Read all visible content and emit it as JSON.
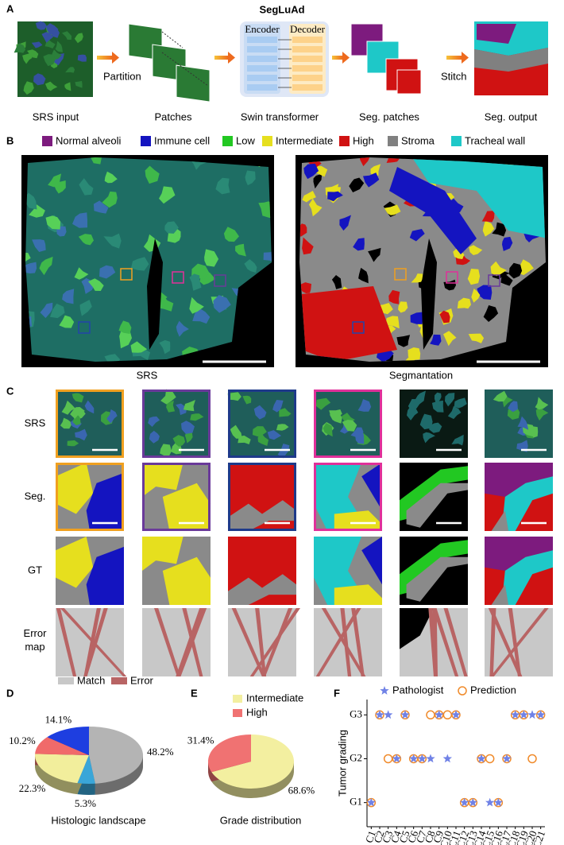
{
  "panels": [
    "A",
    "B",
    "C",
    "D",
    "E",
    "F"
  ],
  "pipeline": {
    "title": "SegLuAd",
    "steps": [
      "SRS input",
      "Patches",
      "Swin transformer",
      "Seg. patches",
      "Seg. output"
    ],
    "arrows": [
      "Partition",
      "Stitch"
    ],
    "encoder": "Encoder",
    "decoder": "Decoder"
  },
  "legend_b": [
    {
      "label": "Normal alveoli",
      "color": "#7d1b7e"
    },
    {
      "label": "Immune cell",
      "color": "#1414c0"
    },
    {
      "label": "Low",
      "color": "#22c822"
    },
    {
      "label": "Intermediate",
      "color": "#e6df1e"
    },
    {
      "label": "High",
      "color": "#d01212"
    },
    {
      "label": "Stroma",
      "color": "#808080"
    },
    {
      "label": "Tracheal wall",
      "color": "#1ec8c8"
    }
  ],
  "captions_b": [
    "SRS",
    "Segmantation"
  ],
  "panel_c": {
    "row_labels": [
      "SRS",
      "Seg.",
      "GT",
      "Error map"
    ],
    "legend": [
      {
        "label": "Match",
        "color": "#c8c8c8"
      },
      {
        "label": "Error",
        "color": "#b86464"
      }
    ]
  },
  "chart_data": [
    {
      "type": "pie",
      "title": "Histologic landscape",
      "values": [
        48.2,
        5.3,
        22.3,
        10.2,
        14.1
      ],
      "value_labels": [
        "48.2%",
        "5.3%",
        "22.3%",
        "10.2%",
        "14.1%"
      ],
      "colors": [
        "#b4b4b4",
        "#3aa6d8",
        "#f2ee9c",
        "#f06a6a",
        "#1e3ee0"
      ]
    },
    {
      "type": "pie",
      "title": "Grade distribution",
      "categories": [
        "Intermediate",
        "High"
      ],
      "values": [
        68.6,
        31.4
      ],
      "value_labels": [
        "68.6%",
        "31.4%"
      ],
      "colors": [
        "#f3efa0",
        "#f07272"
      ]
    },
    {
      "type": "scatter",
      "ylabel": "Tumor grading",
      "categories": [
        "C1",
        "C2",
        "C3",
        "C4",
        "C5",
        "C6",
        "C7",
        "C8",
        "C9",
        "C10",
        "C11",
        "C12",
        "C13",
        "C14",
        "C15",
        "C16",
        "C17",
        "C18",
        "C19",
        "C20",
        "C21"
      ],
      "series": [
        {
          "name": "Pathologist",
          "color": "#7082e6",
          "marker": "star",
          "values": [
            1,
            3,
            3,
            2,
            3,
            2,
            2,
            2,
            3,
            2,
            3,
            1,
            1,
            2,
            1,
            1,
            2,
            3,
            3,
            3,
            3
          ]
        },
        {
          "name": "Prediction",
          "color": "#f08a2a",
          "marker": "circle",
          "values": [
            1,
            3,
            2,
            2,
            3,
            2,
            2,
            3,
            3,
            3,
            3,
            1,
            1,
            2,
            2,
            1,
            2,
            3,
            3,
            2,
            3
          ]
        }
      ],
      "ylim": [
        0.45,
        3.35
      ],
      "yticks": [
        {
          "value": 1,
          "label": "G1"
        },
        {
          "value": 2,
          "label": "G2"
        },
        {
          "value": 3,
          "label": "G3"
        }
      ]
    }
  ]
}
